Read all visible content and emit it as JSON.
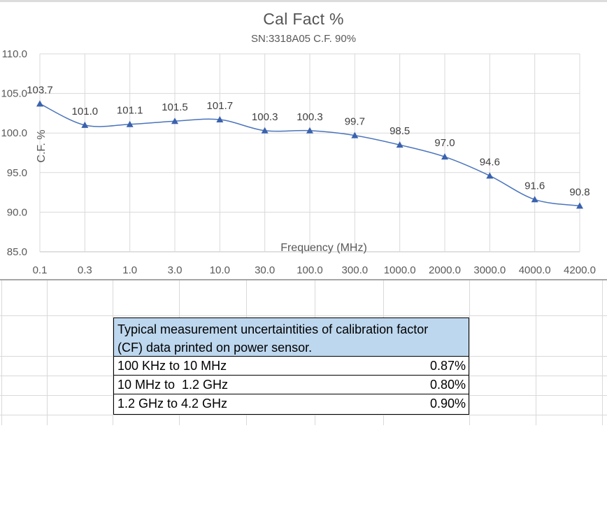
{
  "chart": {
    "title": "Cal Fact %",
    "subtitle": "SN:3318A05 C.F. 90%",
    "y_ticks": [
      "110.0",
      "105.0",
      "100.0",
      "95.0",
      "90.0",
      "85.0"
    ],
    "colors": {
      "line": "#4A74BC",
      "marker": "#3A62AE",
      "gridline": "#d9d9d9",
      "axis_line": "#c2c2c2",
      "axis_text": "#595959",
      "data_label_text": "#3f3f3f",
      "title_text": "#545454"
    }
  },
  "chart_data": {
    "type": "line",
    "title": "Cal Fact %",
    "subtitle": "SN:3318A05 C.F. 90%",
    "xlabel": "Frequency (MHz)",
    "ylabel": "C.F. %",
    "categories": [
      "0.1",
      "0.3",
      "1.0",
      "3.0",
      "10.0",
      "30.0",
      "100.0",
      "300.0",
      "1000.0",
      "2000.0",
      "3000.0",
      "4000.0",
      "4200.0"
    ],
    "series": [
      {
        "name": "C.F. %",
        "values": [
          103.7,
          101.0,
          101.1,
          101.5,
          101.7,
          100.3,
          100.3,
          99.7,
          98.5,
          97.0,
          94.6,
          91.6,
          90.8
        ]
      }
    ],
    "data_labels": [
      "103.7",
      "101.0",
      "101.1",
      "101.5",
      "101.7",
      "100.3",
      "100.3",
      "99.7",
      "98.5",
      "97.0",
      "94.6",
      "91.6",
      "90.8"
    ],
    "ylim": [
      85.0,
      110.0
    ],
    "y_tick_step": 5.0,
    "x_axis_crosses": "on_tick_marks",
    "grid": true,
    "legend": "none",
    "marker": "triangle",
    "smooth": true
  },
  "uncertainty_table": {
    "header_fill": "#BDD7EE",
    "header_lines": [
      "Typical measurement uncertaintities of calibration factor",
      "(CF) data printed on power sensor."
    ],
    "rows": [
      {
        "range": "100 KHz to 10 MHz",
        "value": "0.87%"
      },
      {
        "range": "10 MHz to  1.2 GHz",
        "value": "0.80%"
      },
      {
        "range": "1.2 GHz to 4.2 GHz",
        "value": "0.90%"
      }
    ]
  }
}
